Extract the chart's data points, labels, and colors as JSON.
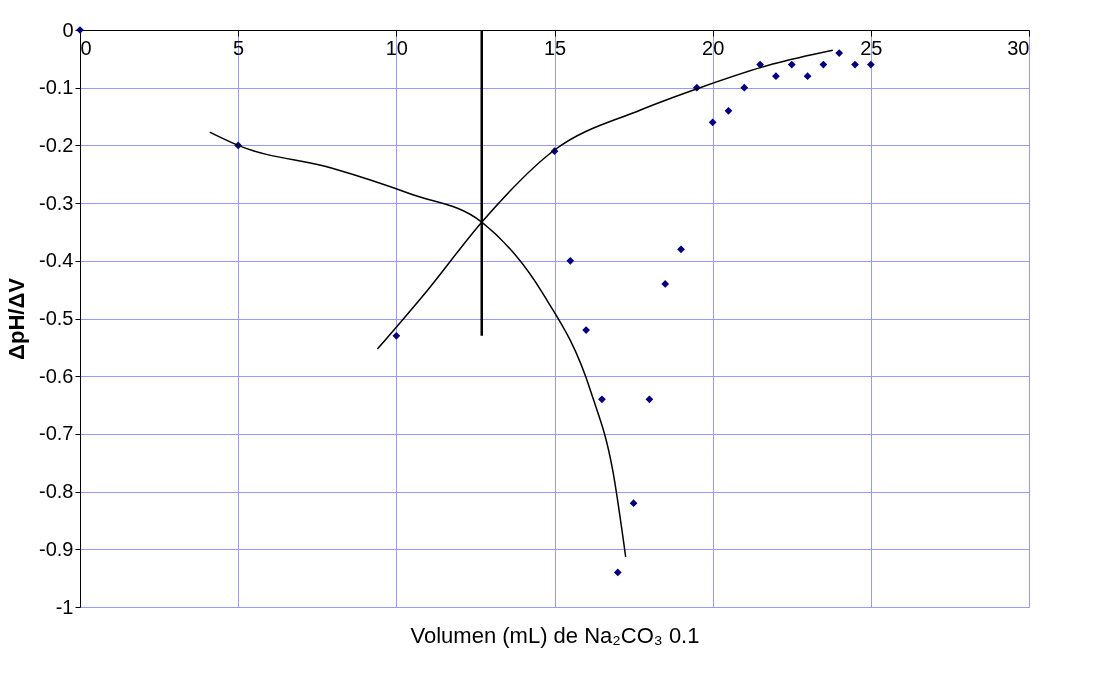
{
  "chart_data": {
    "type": "scatter",
    "xlabel": "Volumen (mL) de Na₂CO₃ 0.1",
    "ylabel": "ΔpH/ΔV",
    "xlim": [
      0,
      30
    ],
    "xticks": [
      0,
      5,
      10,
      15,
      20,
      25,
      30
    ],
    "ylim": [
      -1,
      0
    ],
    "yticks": [
      0,
      -0.1,
      -0.2,
      -0.3,
      -0.4,
      -0.5,
      -0.6,
      -0.7,
      -0.8,
      -0.9,
      -1
    ],
    "grid": true,
    "marker": "diamond",
    "series": [
      {
        "color": "#000080",
        "x": [
          0,
          5,
          10,
          15,
          15.5,
          16,
          16.5,
          17,
          17.5,
          18,
          18.5,
          19,
          19.5,
          20,
          20.5,
          21,
          21.5,
          22,
          22.5,
          23,
          23.5,
          24,
          24.5,
          25
        ],
        "values": [
          0,
          -0.2,
          -0.53,
          -0.21,
          -0.4,
          -0.52,
          -0.64,
          -0.94,
          -0.82,
          -0.64,
          -0.44,
          -0.38,
          -0.1,
          -0.16,
          -0.14,
          -0.1,
          -0.06,
          -0.08,
          -0.06,
          -0.08,
          -0.06,
          -0.04,
          -0.06,
          -0.06
        ]
      },
      {
        "type": "line",
        "color": "#000000",
        "marker": "none",
        "x": [
          4.1,
          5,
          8,
          10.5,
          12.7,
          14.6,
          16.15,
          16.85,
          17.25
        ],
        "values": [
          -0.177,
          -0.2,
          -0.24,
          -0.285,
          -0.333,
          -0.454,
          -0.627,
          -0.766,
          -0.913
        ]
      },
      {
        "type": "line",
        "color": "#000000",
        "marker": "none",
        "x": [
          9.4,
          11,
          12.7,
          15,
          17.7,
          19.6,
          21.9,
          23.8
        ],
        "values": [
          -0.553,
          -0.45,
          -0.333,
          -0.208,
          -0.139,
          -0.1,
          -0.059,
          -0.035
        ]
      },
      {
        "type": "line",
        "color": "#000000",
        "marker": "none",
        "x": [
          12.7,
          12.7
        ],
        "values": [
          0,
          -0.53
        ]
      }
    ]
  }
}
